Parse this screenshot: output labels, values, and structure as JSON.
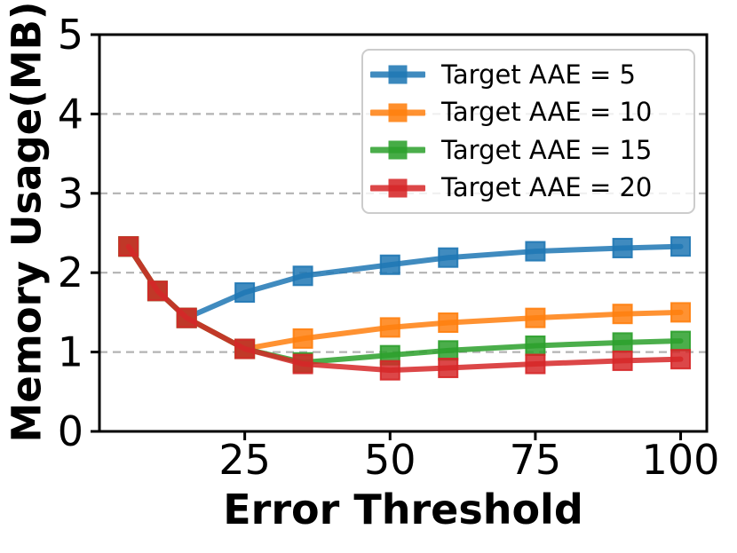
{
  "chart_data": {
    "type": "line",
    "title": "",
    "xlabel": "Error Threshold",
    "ylabel": "Memory Usage(MB)",
    "x": [
      5,
      10,
      15,
      25,
      35,
      50,
      60,
      75,
      90,
      100
    ],
    "xlim": [
      0,
      104.5
    ],
    "ylim": [
      0,
      5
    ],
    "xticks": [
      25,
      50,
      75,
      100
    ],
    "yticks": [
      0,
      1,
      2,
      3,
      4,
      5
    ],
    "grid": "horizontal-dashed-at-integer-yticks",
    "legend_position": "top-right",
    "marker": "square",
    "series": [
      {
        "name": "Target AAE = 5",
        "color": "#1f77b4",
        "values": [
          2.33,
          1.77,
          1.43,
          1.75,
          1.96,
          2.1,
          2.19,
          2.27,
          2.31,
          2.33
        ]
      },
      {
        "name": "Target AAE = 10",
        "color": "#ff7f0e",
        "values": [
          2.33,
          1.77,
          1.43,
          1.04,
          1.17,
          1.31,
          1.37,
          1.43,
          1.48,
          1.5
        ]
      },
      {
        "name": "Target AAE = 15",
        "color": "#2ca02c",
        "values": [
          2.33,
          1.77,
          1.43,
          1.04,
          0.87,
          0.96,
          1.02,
          1.08,
          1.12,
          1.14
        ]
      },
      {
        "name": "Target AAE = 20",
        "color": "#d62728",
        "values": [
          2.33,
          1.77,
          1.43,
          1.04,
          0.85,
          0.77,
          0.8,
          0.85,
          0.89,
          0.91
        ]
      }
    ]
  },
  "colors": {
    "background": "#ffffff",
    "spine": "#000000",
    "grid": "#b3b3b3",
    "tick_text": "#000000",
    "legend_border": "#cccccc"
  }
}
